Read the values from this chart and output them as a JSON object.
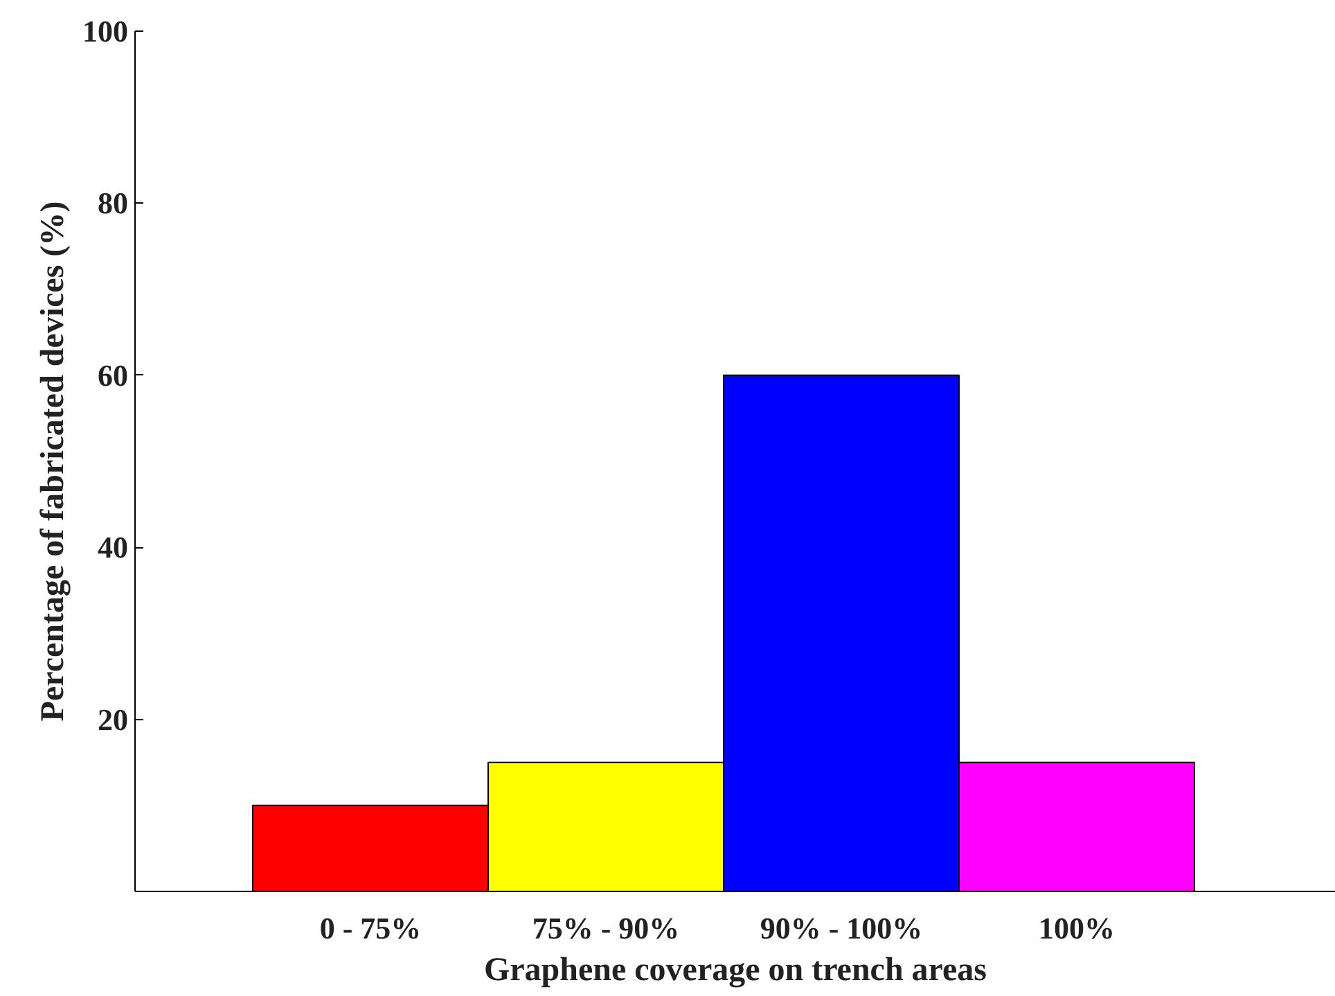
{
  "chart_data": {
    "type": "bar",
    "xlabel": "Graphene coverage on trench areas",
    "ylabel": "Percentage of fabricated devices (%)",
    "categories": [
      "0 - 75%",
      "75% - 90%",
      "90% - 100%",
      "100%"
    ],
    "values": [
      10,
      15,
      60,
      15
    ],
    "colors": [
      "#ff0000",
      "#ffff00",
      "#0000ff",
      "#ff00ff"
    ],
    "ylim": [
      0,
      100
    ],
    "yticks": [
      20,
      40,
      60,
      80,
      100
    ],
    "grid": false
  }
}
